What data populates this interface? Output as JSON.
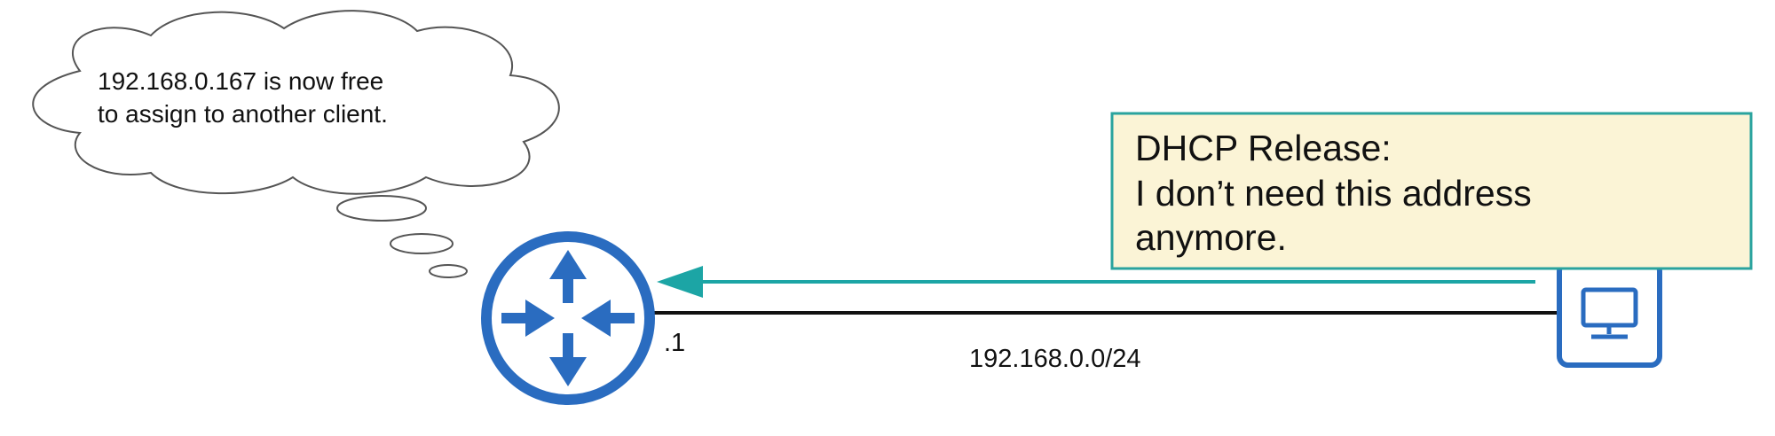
{
  "thought_bubble": {
    "lines": [
      "192.168.0.167 is now free",
      "to assign to another client."
    ]
  },
  "message_note": {
    "lines": [
      "DHCP Release:",
      "I don’t need this address",
      "anymore."
    ]
  },
  "router": {
    "interface_label": ".1",
    "icon": "router-icon"
  },
  "client": {
    "icon": "desktop-computer-icon"
  },
  "link": {
    "network_label": "192.168.0.0/24"
  },
  "colors": {
    "router_blue": "#2a6cc0",
    "arrow_teal": "#1ca5a5",
    "note_fill": "#fbf4d6",
    "note_border": "#2aa39e",
    "link_line": "#111111",
    "cloud_stroke": "#555555"
  }
}
